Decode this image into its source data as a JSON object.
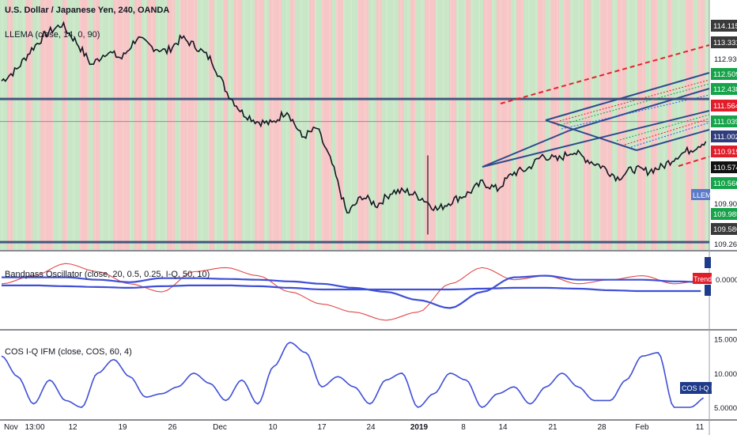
{
  "header": {
    "title": "U.S. Dollar / Japanese Yen, 240, OANDA",
    "indicator": "LLEMA (close, 14, 0, 90)"
  },
  "colors": {
    "band_green": "#c9e7c7",
    "band_red": "#f7c6c6",
    "candle": "#131722",
    "line_blue": "#3f4fd6",
    "line_red": "#e04a4a",
    "channel": "#2e4a8b",
    "dashed_red": "#e0242a",
    "hline": "#44577e"
  },
  "price_badges": [
    {
      "label": "114.115",
      "color": "#3a3a3a"
    },
    {
      "label": "113.331",
      "color": "#3a3a3a"
    },
    {
      "label": "112.930",
      "color": ""
    },
    {
      "label": "112.509",
      "color": "#16a34a"
    },
    {
      "label": "112.438",
      "color": "#16a34a"
    },
    {
      "label": "111.564",
      "color": "#e11d2a"
    },
    {
      "label": "111.039",
      "color": "#16a34a"
    },
    {
      "label": "111.002",
      "color": "#2f3d7d"
    },
    {
      "label": "110.919",
      "color": "#e11d2a"
    },
    {
      "label": "110.574",
      "color": "#111111"
    },
    {
      "label": "110.566",
      "color": "#16a34a"
    },
    {
      "label": "109.900",
      "color": ""
    },
    {
      "label": "109.985",
      "color": "#16a34a"
    },
    {
      "label": "109.586",
      "color": "#3a3a3a"
    },
    {
      "label": "109.265",
      "color": ""
    }
  ],
  "llema_tag": "LLEMA",
  "bandpass": {
    "label": "Bandpass Oscillator (close, 20, 0.5, 0.25, I-Q, 50, 10)",
    "zero_label": "0.0000",
    "trend_tag": "Trend"
  },
  "cos": {
    "label": "COS I-Q IFM (close, COS, 60, 4)",
    "tag": "COS I-Q IFM",
    "ticks": [
      "15.0000",
      "10.0000",
      "5.0000"
    ]
  },
  "x_axis": {
    "labels": [
      "Nov",
      "13:00",
      "12",
      "19",
      "26",
      "Dec",
      "10",
      "17",
      "24",
      "2019",
      "8",
      "14",
      "21",
      "28",
      "Feb",
      "11"
    ]
  },
  "chart_data": [
    {
      "type": "line",
      "title": "U.S. Dollar / Japanese Yen, 240, OANDA",
      "series": [
        {
          "name": "U.S. Dollar / Japanese Yen",
          "values": [
            112.85,
            113.1,
            113.55,
            113.9,
            114.1,
            113.7,
            113.2,
            113.5,
            113.35,
            113.8,
            113.6,
            113.5,
            113.8,
            113.6,
            113.3,
            112.6,
            112.15,
            111.95,
            111.9,
            112.2,
            111.6,
            111.8,
            111.0,
            109.9,
            110.3,
            110.1,
            110.4,
            110.4,
            110.25,
            110.0,
            110.2,
            110.35,
            110.6,
            110.45,
            110.8,
            110.9,
            111.2,
            111.1,
            111.3,
            111.1,
            110.95,
            110.7,
            110.9,
            110.85,
            110.95,
            111.2,
            111.35,
            111.55
          ]
        }
      ],
      "ylim": [
        109.265,
        114.115
      ]
    },
    {
      "type": "line",
      "title": "Bandpass Oscillator (close, 20, 0.5, 0.25, I-Q, 50, 10)",
      "series": [
        {
          "values": [
            0,
            0.1,
            0.25,
            0.15,
            0,
            -0.1,
            0.15,
            0.2,
            0.1,
            -0.1,
            -0.25,
            -0.35,
            -0.45,
            -0.35,
            0.0,
            0.2,
            0.05,
            0.1,
            0.0,
            0.05,
            0.1,
            0.0,
            0.05
          ]
        },
        {
          "values": [
            0.08,
            0.08,
            0.08,
            0.05,
            0.02,
            0.07,
            0.07,
            0.06,
            0.05,
            0.03,
            0.0,
            -0.05,
            -0.1,
            -0.2,
            -0.3,
            -0.1,
            0.08,
            0.1,
            0.05,
            0.05,
            0.05,
            0.03,
            0.02
          ]
        },
        {
          "values": [
            -0.02,
            -0.02,
            -0.03,
            -0.04,
            -0.05,
            -0.03,
            -0.02,
            -0.02,
            -0.03,
            -0.05,
            -0.07,
            -0.07,
            -0.07,
            -0.07,
            -0.07,
            -0.06,
            -0.05,
            -0.05,
            -0.06,
            -0.08,
            -0.09,
            -0.09,
            -0.09
          ]
        }
      ],
      "ylim": [
        -0.5,
        0.35
      ]
    },
    {
      "type": "line",
      "title": "COS I-Q IFM (close, COS, 60, 4)",
      "series": [
        {
          "name": "COS I-Q IFM",
          "values": [
            12.5,
            9.5,
            5.5,
            9,
            6,
            5,
            10,
            12,
            9.5,
            6.5,
            7,
            8,
            10,
            8.5,
            6,
            9,
            5.5,
            11,
            14.5,
            13,
            8,
            9.5,
            8,
            5.5,
            9,
            10,
            5,
            7,
            10,
            9,
            5,
            7,
            8,
            5.5,
            8,
            10,
            8,
            6,
            6,
            9,
            12.5,
            13,
            5,
            5,
            6.5
          ]
        }
      ],
      "ylim": [
        3.5,
        16
      ],
      "ticks": [
        15,
        10,
        5
      ]
    }
  ]
}
